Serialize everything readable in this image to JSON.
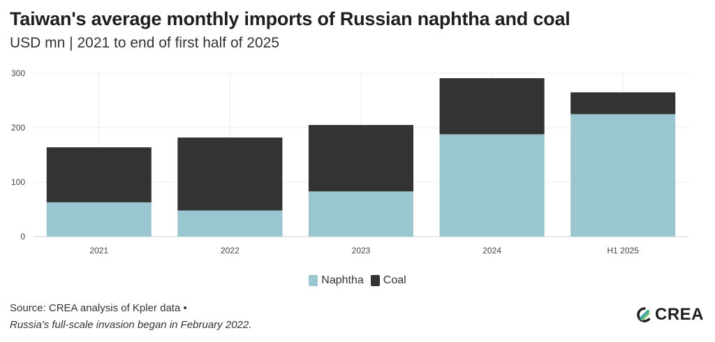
{
  "header": {
    "title": "Taiwan's average monthly imports of Russian naphtha and coal",
    "subtitle": "USD mn | 2021 to end of first half of 2025"
  },
  "footer": {
    "source": "Source: CREA analysis of Kpler data •",
    "note": "Russia's full-scale invasion began in February 2022.",
    "logo_text": "CREA"
  },
  "chart_data": {
    "type": "bar",
    "stacked": true,
    "categories": [
      "2021",
      "2022",
      "2023",
      "2024",
      "H1 2025"
    ],
    "series": [
      {
        "name": "Naphtha",
        "color": "#9ac6cf",
        "values": [
          63,
          48,
          83,
          188,
          225
        ]
      },
      {
        "name": "Coal",
        "color": "#333333",
        "values": [
          101,
          134,
          122,
          103,
          40
        ]
      }
    ],
    "ylim": [
      0,
      300
    ],
    "yticks": [
      0,
      100,
      200,
      300
    ],
    "grid": true,
    "legend_position": "bottom"
  }
}
